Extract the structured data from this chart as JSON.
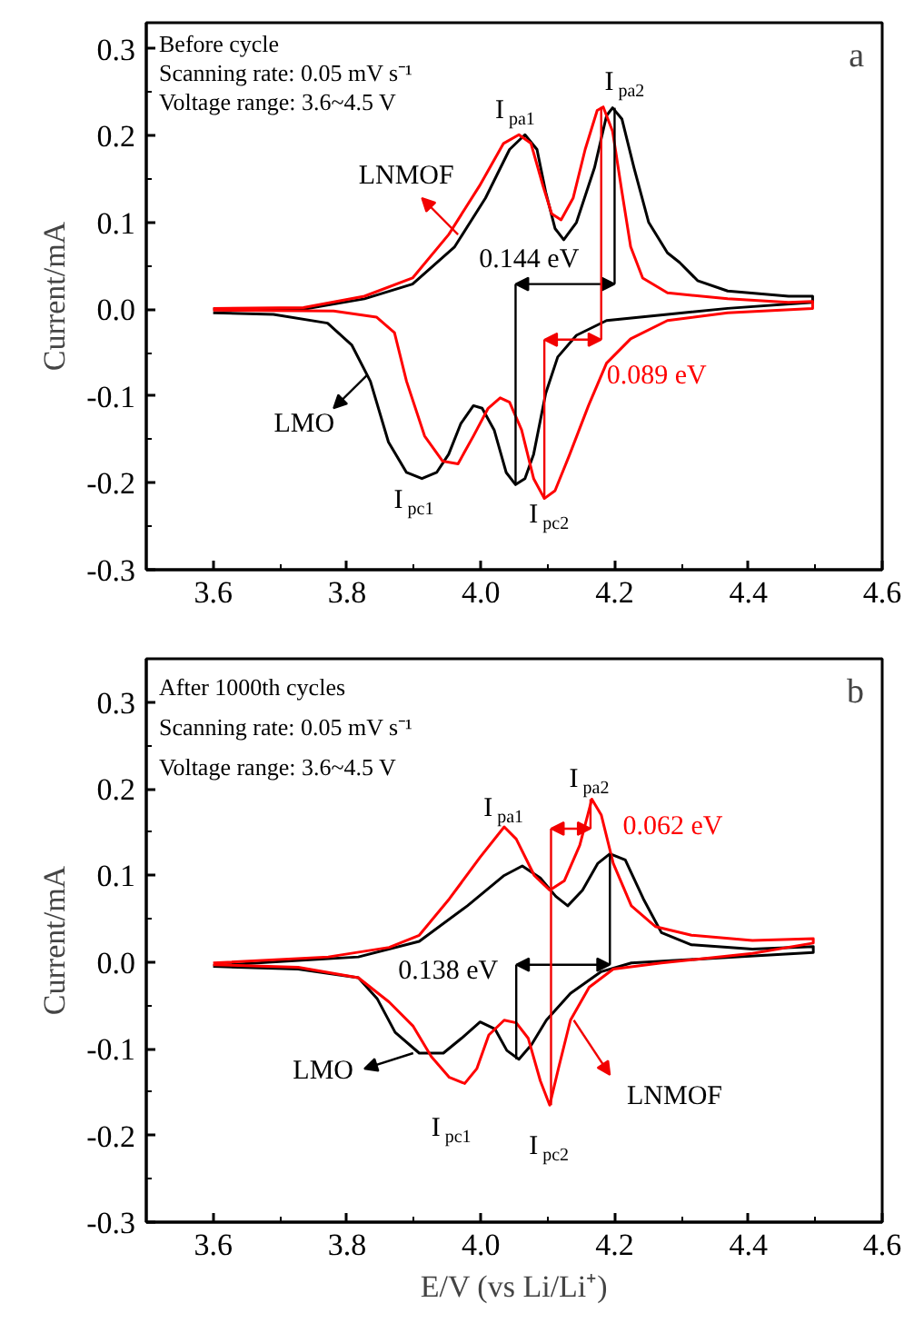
{
  "chart_data": [
    {
      "type": "line",
      "title": "a",
      "ylabel": "Current/mA",
      "xlim": [
        3.5,
        4.6
      ],
      "ylim": [
        -0.3,
        0.33
      ],
      "xticks": [
        3.6,
        3.8,
        {
          "value": 4.0,
          "label": "4.0"
        },
        4.2,
        4.4,
        4.6
      ],
      "yticks": [
        -0.3,
        -0.2,
        -0.1,
        {
          "value": 0,
          "label": "0.0"
        },
        0.1,
        0.2,
        0.3
      ],
      "annotations": [
        "Before cycle",
        "Scanning rate: 0.05 mV s⁻¹",
        "Voltage range: 3.6~4.5 V",
        {
          "text": "I$_{pa1}$",
          "x": 4.066,
          "y": 0.201
        },
        {
          "text": "I$_{pa2}$",
          "x": 4.197,
          "y": 0.232
        },
        {
          "text": "LNMOF",
          "x": 3.966,
          "y": 0.086
        },
        "0.144 eV",
        {
          "text": "0.089 eV",
          "x": 4.18,
          "y": 0.233
        },
        {
          "text": "LMO",
          "x": 3.83,
          "y": -0.076
        },
        {
          "text": "I$_{pc1}$",
          "x": 3.912,
          "y": -0.195
        },
        {
          "text": "I$_{pc2}$",
          "x": 4.095,
          "y": -0.218
        }
      ],
      "series": [
        {
          "color": "#000000",
          "x": [
            3.6,
            3.735,
            3.826,
            3.898,
            3.961,
            4.007,
            4.043,
            4.066,
            4.084,
            4.097,
            4.111,
            4.124,
            4.143,
            4.17,
            4.188,
            4.197,
            4.211,
            4.229,
            4.251,
            4.279,
            4.297,
            4.324,
            4.369,
            4.46,
            4.496,
            4.496,
            4.369,
            4.279,
            4.188,
            4.143,
            4.115,
            4.097,
            4.079,
            4.066,
            4.052,
            4.038,
            4.02,
            4.002,
            3.989,
            3.97,
            3.952,
            3.934,
            3.912,
            3.889,
            3.862,
            3.835,
            3.807,
            3.771,
            3.69,
            3.6
          ],
          "values": [
            0.0,
            0.0,
            0.012,
            0.029,
            0.072,
            0.128,
            0.184,
            0.201,
            0.184,
            0.135,
            0.093,
            0.08,
            0.1,
            0.163,
            0.223,
            0.232,
            0.219,
            0.163,
            0.1,
            0.065,
            0.054,
            0.033,
            0.021,
            0.015,
            0.015,
            0.008,
            0.001,
            -0.006,
            -0.013,
            -0.03,
            -0.055,
            -0.097,
            -0.167,
            -0.195,
            -0.202,
            -0.188,
            -0.139,
            -0.114,
            -0.111,
            -0.132,
            -0.167,
            -0.188,
            -0.195,
            -0.188,
            -0.153,
            -0.083,
            -0.041,
            -0.016,
            -0.006,
            -0.004
          ]
        },
        {
          "color": "#ff0000",
          "x": [
            3.6,
            3.735,
            3.826,
            3.898,
            3.952,
            3.998,
            4.034,
            4.057,
            4.075,
            4.093,
            4.106,
            4.12,
            4.138,
            4.156,
            4.174,
            4.183,
            4.197,
            4.211,
            4.224,
            4.242,
            4.279,
            4.369,
            4.46,
            4.496,
            4.496,
            4.369,
            4.279,
            4.224,
            4.188,
            4.161,
            4.133,
            4.111,
            4.095,
            4.079,
            4.061,
            4.043,
            4.029,
            4.011,
            3.989,
            3.966,
            3.943,
            3.916,
            3.889,
            3.871,
            3.844,
            3.78,
            3.6
          ],
          "values": [
            0.001,
            0.002,
            0.015,
            0.036,
            0.086,
            0.142,
            0.191,
            0.201,
            0.191,
            0.142,
            0.11,
            0.103,
            0.128,
            0.184,
            0.229,
            0.233,
            0.205,
            0.135,
            0.072,
            0.036,
            0.019,
            0.012,
            0.008,
            0.009,
            0.001,
            -0.004,
            -0.013,
            -0.034,
            -0.062,
            -0.111,
            -0.167,
            -0.209,
            -0.218,
            -0.195,
            -0.139,
            -0.107,
            -0.102,
            -0.114,
            -0.146,
            -0.178,
            -0.175,
            -0.146,
            -0.083,
            -0.027,
            -0.009,
            -0.002,
            -0.001
          ]
        }
      ]
    },
    {
      "type": "line",
      "title": "b",
      "xlabel": "E/V (vs Li/Li⁺)",
      "ylabel": "Current/mA",
      "xlim": [
        3.5,
        4.6
      ],
      "ylim": [
        -0.3,
        0.35
      ],
      "xticks": [
        3.6,
        3.8,
        {
          "value": 4.0,
          "label": "4.0"
        },
        4.2,
        4.4,
        4.6
      ],
      "yticks": [
        -0.3,
        -0.2,
        -0.1,
        {
          "value": 0,
          "label": "0.0"
        },
        0.1,
        0.2,
        0.3
      ],
      "annotations": [
        "After 1000th cycles",
        "Scanning rate: 0.05 mV s⁻¹",
        "Voltage range: 3.6~4.5 V",
        {
          "text": "I$_{pa1}$",
          "x": 4.035,
          "y": 0.156
        },
        {
          "text": "I$_{pa2}$",
          "x": 4.166,
          "y": 0.188
        },
        {
          "text": "0.062 eV",
          "x": 4.166,
          "y": 0.188
        },
        "0.138 eV",
        {
          "text": "LMO",
          "x": 3.899,
          "y": -0.105
        },
        {
          "text": "LNMOF",
          "x": 4.139,
          "y": -0.067
        },
        {
          "text": "I$_{pc1}$",
          "x": 3.976,
          "y": -0.14
        },
        {
          "text": "I$_{pc2}$",
          "x": 4.103,
          "y": -0.165
        }
      ],
      "series": [
        {
          "color": "#000000",
          "x": [
            3.6,
            3.817,
            3.908,
            3.98,
            4.035,
            4.062,
            4.089,
            4.112,
            4.13,
            4.152,
            4.175,
            4.193,
            4.216,
            4.243,
            4.27,
            4.315,
            4.406,
            4.497,
            4.497,
            4.361,
            4.225,
            4.18,
            4.134,
            4.098,
            4.076,
            4.057,
            4.039,
            4.021,
            3.999,
            3.971,
            3.944,
            3.908,
            3.872,
            3.845,
            3.817,
            3.727,
            3.6
          ],
          "values": [
            -0.004,
            0.006,
            0.024,
            0.065,
            0.1,
            0.111,
            0.097,
            0.076,
            0.065,
            0.083,
            0.114,
            0.125,
            0.118,
            0.073,
            0.034,
            0.02,
            0.015,
            0.018,
            0.011,
            0.005,
            -0.001,
            -0.011,
            -0.036,
            -0.067,
            -0.095,
            -0.112,
            -0.102,
            -0.077,
            -0.069,
            -0.088,
            -0.105,
            -0.105,
            -0.081,
            -0.042,
            -0.018,
            -0.008,
            -0.005
          ]
        },
        {
          "color": "#ff0000",
          "x": [
            3.6,
            3.772,
            3.863,
            3.908,
            3.953,
            3.999,
            4.035,
            4.053,
            4.08,
            4.103,
            4.125,
            4.148,
            4.166,
            4.18,
            4.198,
            4.225,
            4.261,
            4.315,
            4.406,
            4.497,
            4.497,
            4.406,
            4.27,
            4.198,
            4.162,
            4.134,
            4.116,
            4.103,
            4.089,
            4.071,
            4.053,
            4.035,
            4.012,
            3.994,
            3.976,
            3.953,
            3.926,
            3.899,
            3.863,
            3.817,
            3.727,
            3.6
          ],
          "values": [
            -0.001,
            0.006,
            0.017,
            0.031,
            0.073,
            0.121,
            0.156,
            0.142,
            0.1,
            0.083,
            0.094,
            0.135,
            0.188,
            0.17,
            0.114,
            0.065,
            0.041,
            0.031,
            0.025,
            0.027,
            0.022,
            0.01,
            -0.001,
            -0.008,
            -0.029,
            -0.067,
            -0.123,
            -0.165,
            -0.137,
            -0.088,
            -0.07,
            -0.067,
            -0.084,
            -0.123,
            -0.14,
            -0.133,
            -0.109,
            -0.074,
            -0.046,
            -0.018,
            -0.006,
            -0.003
          ]
        }
      ]
    }
  ]
}
